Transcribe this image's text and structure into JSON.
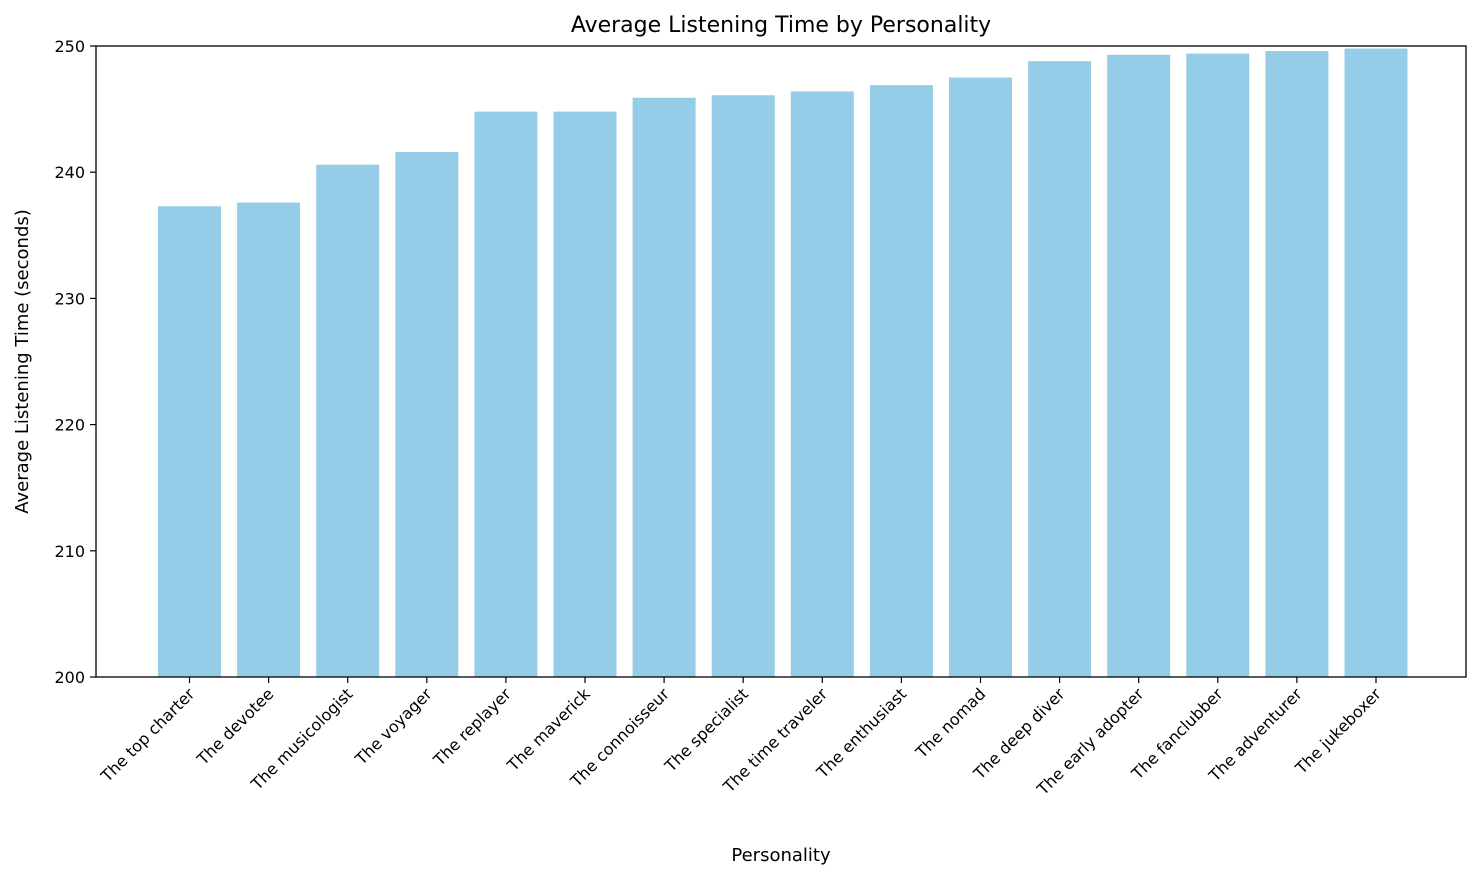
{
  "chart_data": {
    "type": "bar",
    "title": "Average Listening Time by Personality",
    "xlabel": "Personality",
    "ylabel": "Average Listening Time (seconds)",
    "categories": [
      "The top charter",
      "The devotee",
      "The musicologist",
      "The voyager",
      "The replayer",
      "The maverick",
      "The connoisseur",
      "The specialist",
      "The time traveler",
      "The enthusiast",
      "The nomad",
      "The deep diver",
      "The early adopter",
      "The fanclubber",
      "The adventurer",
      "The jukeboxer"
    ],
    "values": [
      237.3,
      237.6,
      240.6,
      241.6,
      244.8,
      244.8,
      245.9,
      246.1,
      246.4,
      246.9,
      247.5,
      248.8,
      249.3,
      249.4,
      249.6,
      249.8
    ],
    "ylim": [
      200,
      250
    ],
    "yticks": [
      200,
      210,
      220,
      230,
      240,
      250
    ],
    "bar_color": "#95cde8",
    "grid": false,
    "legend": "none"
  }
}
